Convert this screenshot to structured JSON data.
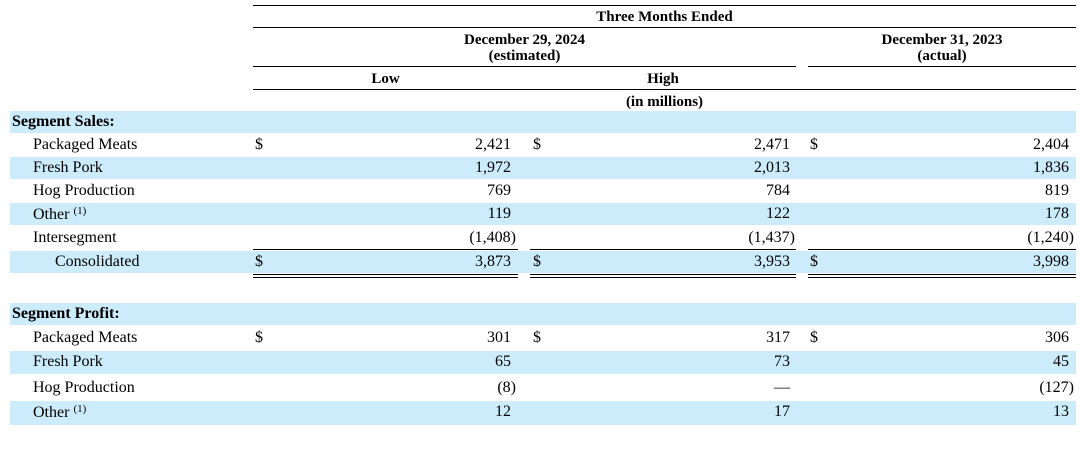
{
  "header": {
    "period": "Three Months Ended",
    "col1_date": "December 29, 2024",
    "col1_note": "(estimated)",
    "col2_date": "December 31, 2023",
    "col2_note": "(actual)",
    "low": "Low",
    "high": "High",
    "units": "(in millions)"
  },
  "currency_symbol": "$",
  "sales": {
    "title": "Segment Sales:",
    "rows": [
      {
        "label": "Packaged Meats",
        "sup": "",
        "low": "2,421",
        "high": "2,471",
        "actual": "2,404",
        "dollar": true
      },
      {
        "label": "Fresh Pork",
        "sup": "",
        "low": "1,972",
        "high": "2,013",
        "actual": "1,836",
        "dollar": false
      },
      {
        "label": "Hog Production",
        "sup": "",
        "low": "769",
        "high": "784",
        "actual": "819",
        "dollar": false
      },
      {
        "label": "Other ",
        "sup": "(1)",
        "low": "119",
        "high": "122",
        "actual": "178",
        "dollar": false
      },
      {
        "label": "Intersegment",
        "sup": "",
        "low": "(1,408)",
        "high": "(1,437)",
        "actual": "(1,240)",
        "dollar": false
      }
    ],
    "total": {
      "label": "Consolidated",
      "low": "3,873",
      "high": "3,953",
      "actual": "3,998"
    }
  },
  "profit": {
    "title": "Segment Profit:",
    "rows": [
      {
        "label": "Packaged Meats",
        "sup": "",
        "low": "301",
        "high": "317",
        "actual": "306",
        "dollar": true
      },
      {
        "label": "Fresh Pork",
        "sup": "",
        "low": "65",
        "high": "73",
        "actual": "45",
        "dollar": false
      },
      {
        "label": "Hog Production",
        "sup": "",
        "low": "(8)",
        "high": "—",
        "actual": "(127)",
        "dollar": false
      },
      {
        "label": "Other ",
        "sup": "(1)",
        "low": "12",
        "high": "17",
        "actual": "13",
        "dollar": false
      }
    ]
  }
}
